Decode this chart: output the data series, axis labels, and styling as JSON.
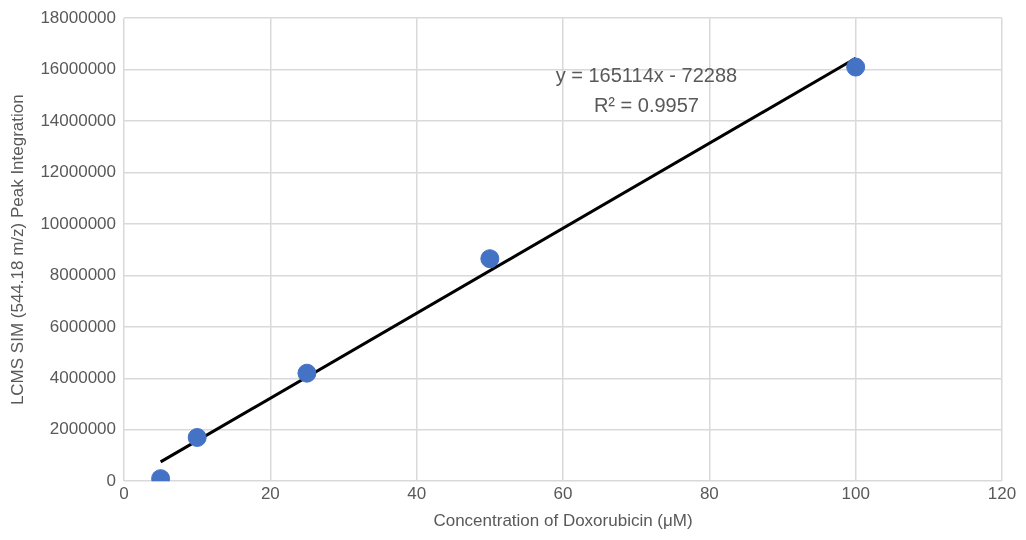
{
  "chart_data": {
    "type": "scatter",
    "xlabel": "Concentration of Doxorubicin (μM)",
    "ylabel": "LCMS SIM (544.18 m/z) Peak Integration",
    "annotations": [
      "y = 165114x - 72288",
      "R² = 0.9957"
    ],
    "x": [
      5,
      10,
      25,
      50,
      100
    ],
    "series": [
      {
        "color": "#4472c4",
        "marker": "circle",
        "values": [
          100000,
          1700000,
          4200000,
          8650000,
          16100000
        ]
      },
      {
        "type": "line",
        "color": "#000000",
        "marker": "none",
        "line_style": "solid",
        "x": [
          5,
          100
        ],
        "values": [
          750000,
          16440000
        ]
      }
    ],
    "xlim": [
      0,
      120
    ],
    "xticks": [
      0,
      20,
      40,
      60,
      80,
      100,
      120
    ],
    "ylim": [
      0,
      18000000
    ],
    "yticks": [
      0,
      2000000,
      4000000,
      6000000,
      8000000,
      10000000,
      12000000,
      14000000,
      16000000,
      18000000
    ],
    "grid": true,
    "legend": false
  }
}
